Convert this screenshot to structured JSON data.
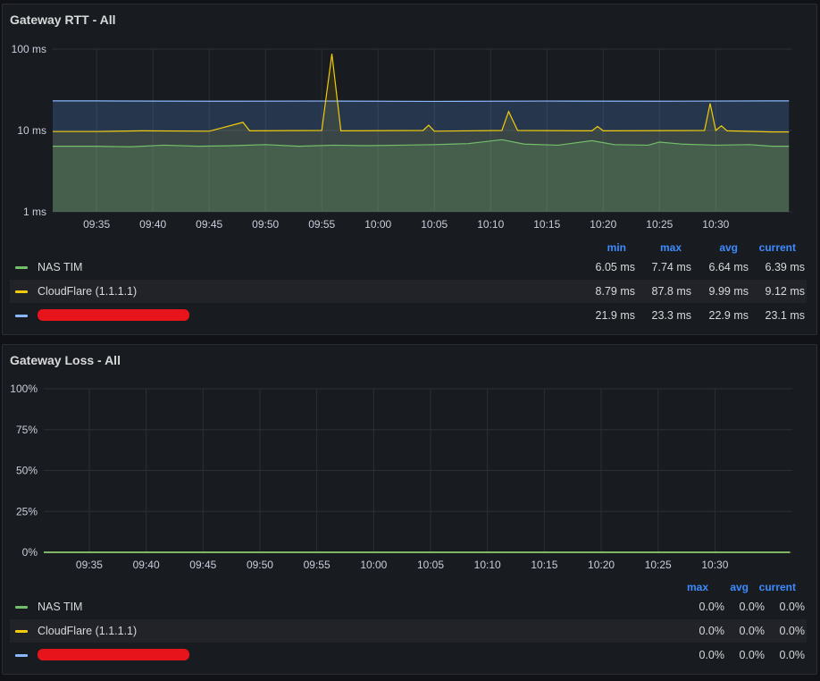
{
  "colors": {
    "nas_tim": "#73bf69",
    "cloudflare": "#f2cc0c",
    "third": "#8ab8ff",
    "third_fill": "#1f3b4d",
    "legend_header": "#3d8bff",
    "redaction": "#e8141b"
  },
  "rtt_panel": {
    "title": "Gateway RTT - All",
    "legend_headers": [
      "min",
      "max",
      "avg",
      "current"
    ],
    "rows": [
      {
        "name": "NAS TIM",
        "min": "6.05 ms",
        "max": "7.74 ms",
        "avg": "6.64 ms",
        "current": "6.39 ms"
      },
      {
        "name": "CloudFlare (1.1.1.1)",
        "min": "8.79 ms",
        "max": "87.8 ms",
        "avg": "9.99 ms",
        "current": "9.12 ms"
      },
      {
        "name": "",
        "min": "21.9 ms",
        "max": "23.3 ms",
        "avg": "22.9 ms",
        "current": "23.1 ms"
      }
    ]
  },
  "loss_panel": {
    "title": "Gateway Loss - All",
    "legend_headers": [
      "max",
      "avg",
      "current"
    ],
    "rows": [
      {
        "name": "NAS TIM",
        "max": "0.0%",
        "avg": "0.0%",
        "current": "0.0%"
      },
      {
        "name": "CloudFlare (1.1.1.1)",
        "max": "0.0%",
        "avg": "0.0%",
        "current": "0.0%"
      },
      {
        "name": "",
        "max": "0.0%",
        "avg": "0.0%",
        "current": "0.0%"
      }
    ]
  },
  "chart_data": [
    {
      "type": "area",
      "title": "Gateway RTT - All",
      "yscale": "log",
      "ylim": [
        1,
        100
      ],
      "yticks": [
        "1 ms",
        "10 ms",
        "100 ms"
      ],
      "ytick_values": [
        1,
        10,
        100
      ],
      "xticks": [
        "09:35",
        "09:40",
        "09:45",
        "09:50",
        "09:55",
        "10:00",
        "10:05",
        "10:10",
        "10:15",
        "10:20",
        "10:25",
        "10:30"
      ],
      "xlim_minutes": [
        0,
        60
      ],
      "grid": true,
      "series": [
        {
          "name": "NAS TIM",
          "baseline": 6.5,
          "points": [
            [
              0,
              6.4
            ],
            [
              3,
              6.3
            ],
            [
              6,
              6.6
            ],
            [
              9,
              6.4
            ],
            [
              12,
              6.5
            ],
            [
              15,
              6.7
            ],
            [
              18,
              6.4
            ],
            [
              21,
              6.6
            ],
            [
              24,
              6.5
            ],
            [
              27,
              6.6
            ],
            [
              30,
              6.7
            ],
            [
              33,
              6.9
            ],
            [
              36,
              7.7
            ],
            [
              38,
              6.8
            ],
            [
              41,
              6.6
            ],
            [
              44,
              7.5
            ],
            [
              46,
              6.7
            ],
            [
              49,
              6.6
            ],
            [
              50,
              7.2
            ],
            [
              52,
              6.8
            ],
            [
              55,
              6.6
            ],
            [
              58,
              6.7
            ],
            [
              60,
              6.4
            ]
          ]
        },
        {
          "name": "CloudFlare (1.1.1.1)",
          "baseline": 9.9,
          "points": [
            [
              0,
              9.7
            ],
            [
              4,
              9.9
            ],
            [
              10,
              9.8
            ],
            [
              13,
              12.6
            ],
            [
              13.6,
              9.9
            ],
            [
              20,
              10.0
            ],
            [
              20.9,
              87.8
            ],
            [
              21.7,
              9.9
            ],
            [
              29,
              10.0
            ],
            [
              29.5,
              11.6
            ],
            [
              30,
              9.8
            ],
            [
              36,
              10.0
            ],
            [
              36.6,
              17.1
            ],
            [
              37.4,
              10.0
            ],
            [
              44,
              9.9
            ],
            [
              44.5,
              11.2
            ],
            [
              45,
              9.9
            ],
            [
              54,
              10.0
            ],
            [
              54.5,
              21.5
            ],
            [
              55,
              10.0
            ],
            [
              55.5,
              11.4
            ],
            [
              56,
              9.9
            ],
            [
              60,
              9.6
            ]
          ]
        },
        {
          "name": "",
          "baseline": 23.0,
          "points": [
            [
              0,
              23.1
            ],
            [
              10,
              22.9
            ],
            [
              20,
              23.0
            ],
            [
              30,
              22.8
            ],
            [
              40,
              23.0
            ],
            [
              50,
              22.9
            ],
            [
              60,
              23.1
            ]
          ]
        }
      ]
    },
    {
      "type": "line",
      "title": "Gateway Loss - All",
      "ylim": [
        0,
        100
      ],
      "yticks": [
        "0%",
        "25%",
        "50%",
        "75%",
        "100%"
      ],
      "ytick_values": [
        0,
        25,
        50,
        75,
        100
      ],
      "xticks": [
        "09:35",
        "09:40",
        "09:45",
        "09:50",
        "09:55",
        "10:00",
        "10:05",
        "10:10",
        "10:15",
        "10:20",
        "10:25",
        "10:30"
      ],
      "xlim_minutes": [
        0,
        60
      ],
      "grid": true,
      "series": [
        {
          "name": "NAS TIM",
          "points": [
            [
              0,
              0
            ],
            [
              60,
              0
            ]
          ]
        },
        {
          "name": "CloudFlare (1.1.1.1)",
          "points": [
            [
              0,
              0
            ],
            [
              60,
              0
            ]
          ]
        },
        {
          "name": "",
          "points": [
            [
              0,
              0
            ],
            [
              60,
              0
            ]
          ]
        }
      ]
    }
  ]
}
